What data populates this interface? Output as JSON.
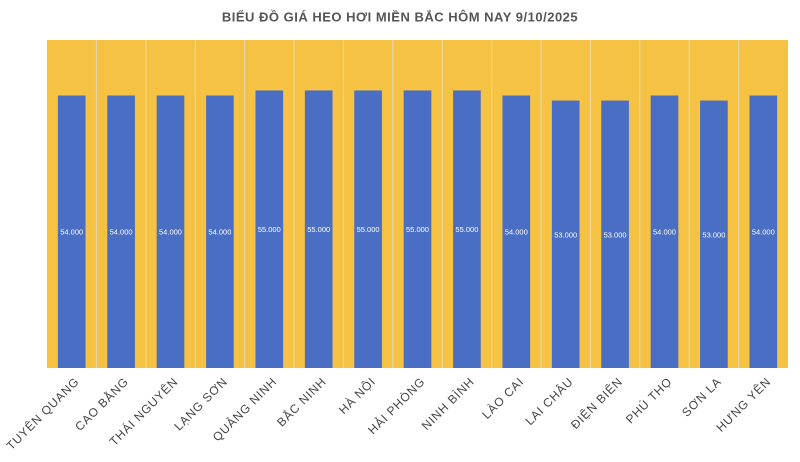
{
  "chart_data": {
    "type": "bar",
    "title": "BIỂU ĐỒ GIÁ HEO HƠI MIỀN BẮC HÔM NAY 9/10/2025",
    "categories": [
      "TUYÊN QUANG",
      "CAO BẰNG",
      "THÁI NGUYÊN",
      "LẠNG SƠN",
      "QUẢNG NINH",
      "BẮC NINH",
      "HÀ NỘI",
      "HẢI PHÒNG",
      "NINH BÌNH",
      "LÀO CAI",
      "LAI CHÂU",
      "ĐIỆN BIÊN",
      "PHÚ THỌ",
      "SƠN LA",
      "HƯNG YÊN"
    ],
    "values": [
      54000,
      54000,
      54000,
      54000,
      55000,
      55000,
      55000,
      55000,
      55000,
      54000,
      53000,
      53000,
      54000,
      53000,
      54000
    ],
    "value_labels": [
      "54.000",
      "54.000",
      "54.000",
      "54.000",
      "55.000",
      "55.000",
      "55.000",
      "55.000",
      "55.000",
      "54.000",
      "53.000",
      "53.000",
      "54.000",
      "53.000",
      "54.000"
    ],
    "color": "#4a6ec4",
    "background": "#f5c243",
    "ylim": [
      0,
      65000
    ]
  }
}
